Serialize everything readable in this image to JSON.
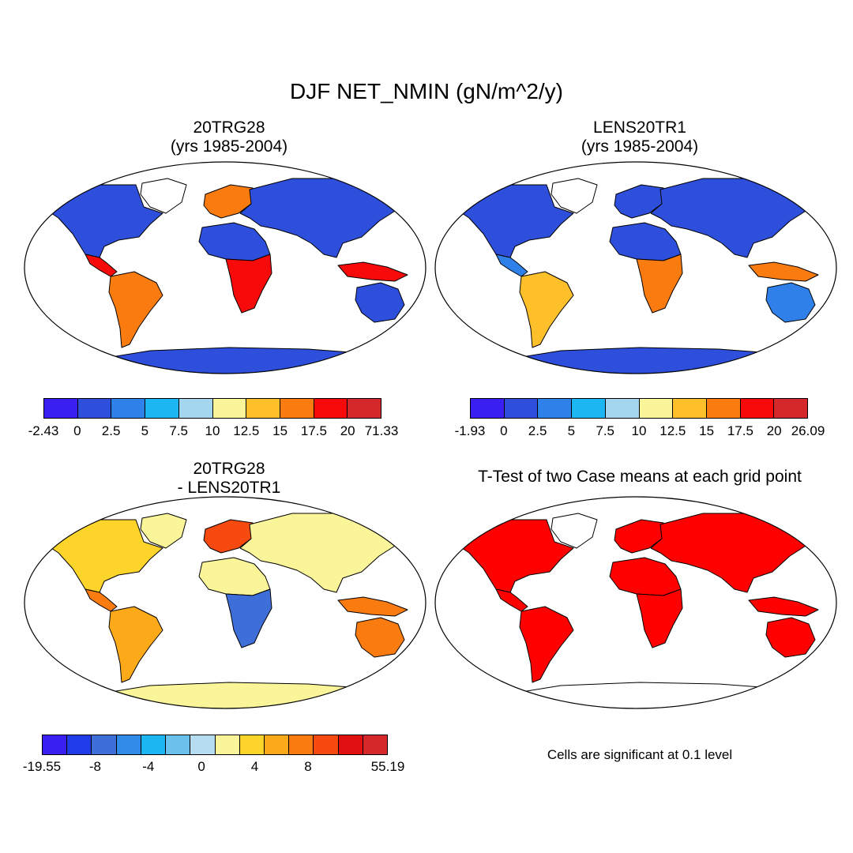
{
  "main_title": "DJF NET_NMIN (gN/m^2/y)",
  "colors": {
    "ocean": "#ffffff",
    "coast": "#000000",
    "significant": "#ff0000"
  },
  "panels": [
    {
      "id": "case1",
      "title_line1": "20TRG28",
      "title_line2": "(yrs 1985-2004)",
      "colorbar": {
        "labels": [
          "-2.43",
          "0",
          "2.5",
          "5",
          "7.5",
          "10",
          "12.5",
          "15",
          "17.5",
          "20",
          "71.33"
        ],
        "colors": [
          "#3a1ff2",
          "#2e4fdb",
          "#2f80e8",
          "#1cb6f3",
          "#a4d6f0",
          "#fbf59a",
          "#fdc02a",
          "#fa7c10",
          "#f70a0a",
          "#d4282b"
        ]
      },
      "regions": [
        {
          "name": "north-america",
          "color": "#2e4fdb"
        },
        {
          "name": "central-america",
          "color": "#f70a0a"
        },
        {
          "name": "south-america",
          "color": "#fa7c10"
        },
        {
          "name": "europe",
          "color": "#fa7c10"
        },
        {
          "name": "asia",
          "color": "#2e4fdb"
        },
        {
          "name": "africa-north",
          "color": "#2e4fdb"
        },
        {
          "name": "africa-south",
          "color": "#f70a0a"
        },
        {
          "name": "indonesia",
          "color": "#f70a0a"
        },
        {
          "name": "australia",
          "color": "#2e4fdb"
        },
        {
          "name": "antarctica",
          "color": "#2e4fdb"
        },
        {
          "name": "greenland",
          "color": "#ffffff"
        }
      ]
    },
    {
      "id": "case2",
      "title_line1": "LENS20TR1",
      "title_line2": "(yrs 1985-2004)",
      "colorbar": {
        "labels": [
          "-1.93",
          "0",
          "2.5",
          "5",
          "7.5",
          "10",
          "12.5",
          "15",
          "17.5",
          "20",
          "26.09"
        ],
        "colors": [
          "#3a1ff2",
          "#2e4fdb",
          "#2f80e8",
          "#1cb6f3",
          "#a4d6f0",
          "#fbf59a",
          "#fdc02a",
          "#fa7c10",
          "#f70a0a",
          "#d4282b"
        ]
      },
      "regions": [
        {
          "name": "north-america",
          "color": "#2e4fdb"
        },
        {
          "name": "central-america",
          "color": "#2f80e8"
        },
        {
          "name": "south-america",
          "color": "#fdc02a"
        },
        {
          "name": "europe",
          "color": "#2e4fdb"
        },
        {
          "name": "asia",
          "color": "#2e4fdb"
        },
        {
          "name": "africa-north",
          "color": "#2e4fdb"
        },
        {
          "name": "africa-south",
          "color": "#fa7c10"
        },
        {
          "name": "indonesia",
          "color": "#fa7c10"
        },
        {
          "name": "australia",
          "color": "#2f80e8"
        },
        {
          "name": "antarctica",
          "color": "#2e4fdb"
        },
        {
          "name": "greenland",
          "color": "#ffffff"
        }
      ]
    },
    {
      "id": "difference",
      "title_line1": "20TRG28",
      "title_line2": "- LENS20TR1",
      "colorbar": {
        "labels": [
          "-19.55",
          "",
          "-8",
          "",
          "-4",
          "",
          "0",
          "",
          "4",
          "",
          "8",
          "",
          "",
          "55.19"
        ],
        "colors": [
          "#3a1ff2",
          "#1e3ce8",
          "#3e6fd8",
          "#2f8ae8",
          "#1cb6f3",
          "#6ac1ec",
          "#b5dcf0",
          "#fbf59a",
          "#fdd52a",
          "#fdaa1a",
          "#fa7c10",
          "#f74a10",
          "#e01010",
          "#d4282b"
        ]
      },
      "regions": [
        {
          "name": "north-america",
          "color": "#fdd52a"
        },
        {
          "name": "central-america",
          "color": "#fa7c10"
        },
        {
          "name": "south-america",
          "color": "#fdaa1a"
        },
        {
          "name": "europe",
          "color": "#f74a10"
        },
        {
          "name": "asia",
          "color": "#fbf59a"
        },
        {
          "name": "africa-north",
          "color": "#fbf59a"
        },
        {
          "name": "africa-south",
          "color": "#3e6fd8"
        },
        {
          "name": "indonesia",
          "color": "#fa7c10"
        },
        {
          "name": "australia",
          "color": "#fa7c10"
        },
        {
          "name": "antarctica",
          "color": "#fbf59a"
        },
        {
          "name": "greenland",
          "color": "#fbf59a"
        }
      ]
    },
    {
      "id": "ttest",
      "title_line1": "T-Test of two Case means at each grid point",
      "title_line2": "",
      "note": "Cells are significant at 0.1 level",
      "regions": [
        {
          "name": "north-america",
          "color": "#ff0000"
        },
        {
          "name": "central-america",
          "color": "#ff0000"
        },
        {
          "name": "south-america",
          "color": "#ff0000"
        },
        {
          "name": "europe",
          "color": "#ff0000"
        },
        {
          "name": "asia",
          "color": "#ff0000"
        },
        {
          "name": "africa-north",
          "color": "#ff0000"
        },
        {
          "name": "africa-south",
          "color": "#ff0000"
        },
        {
          "name": "indonesia",
          "color": "#ff0000"
        },
        {
          "name": "australia",
          "color": "#ff0000"
        },
        {
          "name": "antarctica",
          "color": "#ffffff"
        },
        {
          "name": "greenland",
          "color": "#ffffff"
        }
      ]
    }
  ]
}
